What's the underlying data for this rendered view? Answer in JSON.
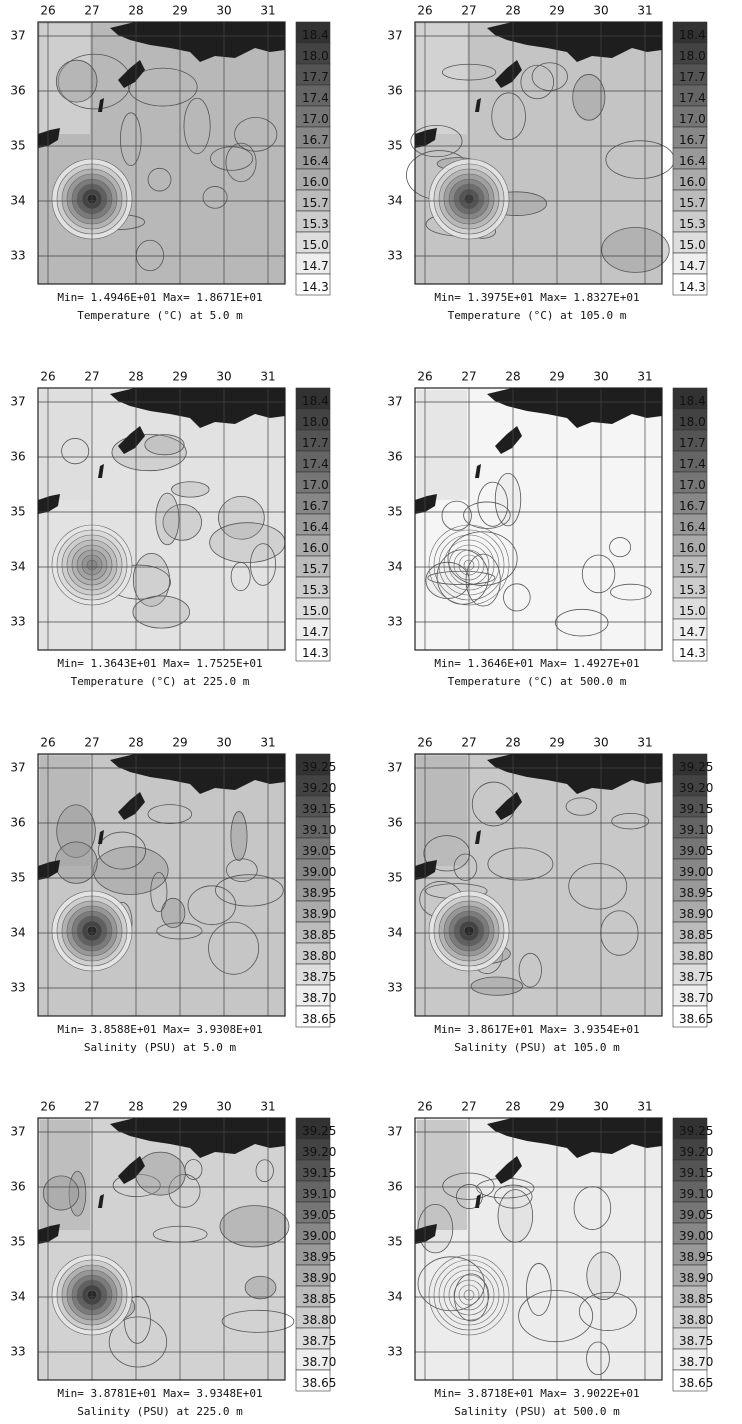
{
  "longitude_labels": [
    26,
    27,
    28,
    29,
    30,
    31
  ],
  "latitude_labels": [
    37,
    36,
    35,
    34,
    33
  ],
  "panels": [
    {
      "colorbar": [
        "18.4",
        "18.0",
        "17.7",
        "17.4",
        "17.0",
        "16.7",
        "16.4",
        "16.0",
        "15.7",
        "15.3",
        "15.0",
        "14.7",
        "14.3"
      ],
      "stats": "Min= 1.4946E+01   Max= 1.8671E+01",
      "caption": "Temperature (°C) at 5.0 m"
    },
    {
      "colorbar": [
        "18.4",
        "18.0",
        "17.7",
        "17.4",
        "17.0",
        "16.7",
        "16.4",
        "16.0",
        "15.7",
        "15.3",
        "15.0",
        "14.7",
        "14.3"
      ],
      "stats": "Min= 1.3975E+01   Max= 1.8327E+01",
      "caption": "Temperature (°C) at 105.0 m"
    },
    {
      "colorbar": [
        "18.4",
        "18.0",
        "17.7",
        "17.4",
        "17.0",
        "16.7",
        "16.4",
        "16.0",
        "15.7",
        "15.3",
        "15.0",
        "14.7",
        "14.3"
      ],
      "stats": "Min= 1.3643E+01   Max= 1.7525E+01",
      "caption": "Temperature (°C) at 225.0 m"
    },
    {
      "colorbar": [
        "18.4",
        "18.0",
        "17.7",
        "17.4",
        "17.0",
        "16.7",
        "16.4",
        "16.0",
        "15.7",
        "15.3",
        "15.0",
        "14.7",
        "14.3"
      ],
      "stats": "Min= 1.3646E+01   Max= 1.4927E+01",
      "caption": "Temperature (°C) at 500.0 m"
    },
    {
      "colorbar": [
        "39.25",
        "39.20",
        "39.15",
        "39.10",
        "39.05",
        "39.00",
        "38.95",
        "38.90",
        "38.85",
        "38.80",
        "38.75",
        "38.70",
        "38.65"
      ],
      "stats": "Min= 3.8588E+01   Max= 3.9308E+01",
      "caption": "Salinity (PSU) at 5.0 m"
    },
    {
      "colorbar": [
        "39.25",
        "39.20",
        "39.15",
        "39.10",
        "39.05",
        "39.00",
        "38.95",
        "38.90",
        "38.85",
        "38.80",
        "38.75",
        "38.70",
        "38.65"
      ],
      "stats": "Min= 3.8617E+01   Max= 3.9354E+01",
      "caption": "Salinity (PSU) at 105.0 m"
    },
    {
      "colorbar": [
        "39.25",
        "39.20",
        "39.15",
        "39.10",
        "39.05",
        "39.00",
        "38.95",
        "38.90",
        "38.85",
        "38.80",
        "38.75",
        "38.70",
        "38.65"
      ],
      "stats": "Min= 3.8781E+01   Max= 3.9348E+01",
      "caption": "Salinity (PSU) at 225.0 m"
    },
    {
      "colorbar": [
        "39.25",
        "39.20",
        "39.15",
        "39.10",
        "39.05",
        "39.00",
        "38.95",
        "38.90",
        "38.85",
        "38.80",
        "38.75",
        "38.70",
        "38.65"
      ],
      "stats": "Min= 3.8718E+01   Max= 3.9022E+01",
      "caption": "Salinity (PSU) at 500.0 m"
    }
  ]
}
